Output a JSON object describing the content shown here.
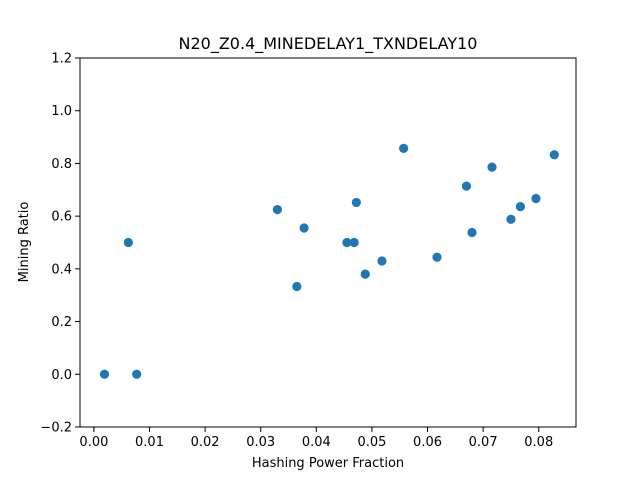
{
  "chart_data": {
    "type": "scatter",
    "title": "N20_Z0.4_MINEDELAY1_TXNDELAY10",
    "xlabel": "Hashing Power Fraction",
    "ylabel": "Mining Ratio",
    "xlim": [
      -0.0025,
      0.0867
    ],
    "ylim": [
      -0.2,
      1.2
    ],
    "xticks": [
      0.0,
      0.01,
      0.02,
      0.03,
      0.04,
      0.05,
      0.06,
      0.07,
      0.08
    ],
    "xtick_labels": [
      "0.00",
      "0.01",
      "0.02",
      "0.03",
      "0.04",
      "0.05",
      "0.06",
      "0.07",
      "0.08"
    ],
    "yticks": [
      -0.2,
      0.0,
      0.2,
      0.4,
      0.6,
      0.8,
      1.0,
      1.2
    ],
    "ytick_labels": [
      "−0.2",
      "0.0",
      "0.2",
      "0.4",
      "0.6",
      "0.8",
      "1.0",
      "1.2"
    ],
    "grid": false,
    "marker_color": "#1f77b4",
    "points": [
      {
        "x": 0.0019,
        "y": 0.0
      },
      {
        "x": 0.0077,
        "y": 0.0
      },
      {
        "x": 0.0062,
        "y": 0.5
      },
      {
        "x": 0.033,
        "y": 0.625
      },
      {
        "x": 0.0365,
        "y": 0.333
      },
      {
        "x": 0.0378,
        "y": 0.555
      },
      {
        "x": 0.0455,
        "y": 0.5
      },
      {
        "x": 0.0468,
        "y": 0.5
      },
      {
        "x": 0.0472,
        "y": 0.652
      },
      {
        "x": 0.0488,
        "y": 0.38
      },
      {
        "x": 0.0518,
        "y": 0.43
      },
      {
        "x": 0.0557,
        "y": 0.857
      },
      {
        "x": 0.0617,
        "y": 0.444
      },
      {
        "x": 0.067,
        "y": 0.714
      },
      {
        "x": 0.068,
        "y": 0.538
      },
      {
        "x": 0.0716,
        "y": 0.786
      },
      {
        "x": 0.075,
        "y": 0.588
      },
      {
        "x": 0.0767,
        "y": 0.636
      },
      {
        "x": 0.0795,
        "y": 0.667
      },
      {
        "x": 0.0828,
        "y": 0.833
      }
    ]
  }
}
